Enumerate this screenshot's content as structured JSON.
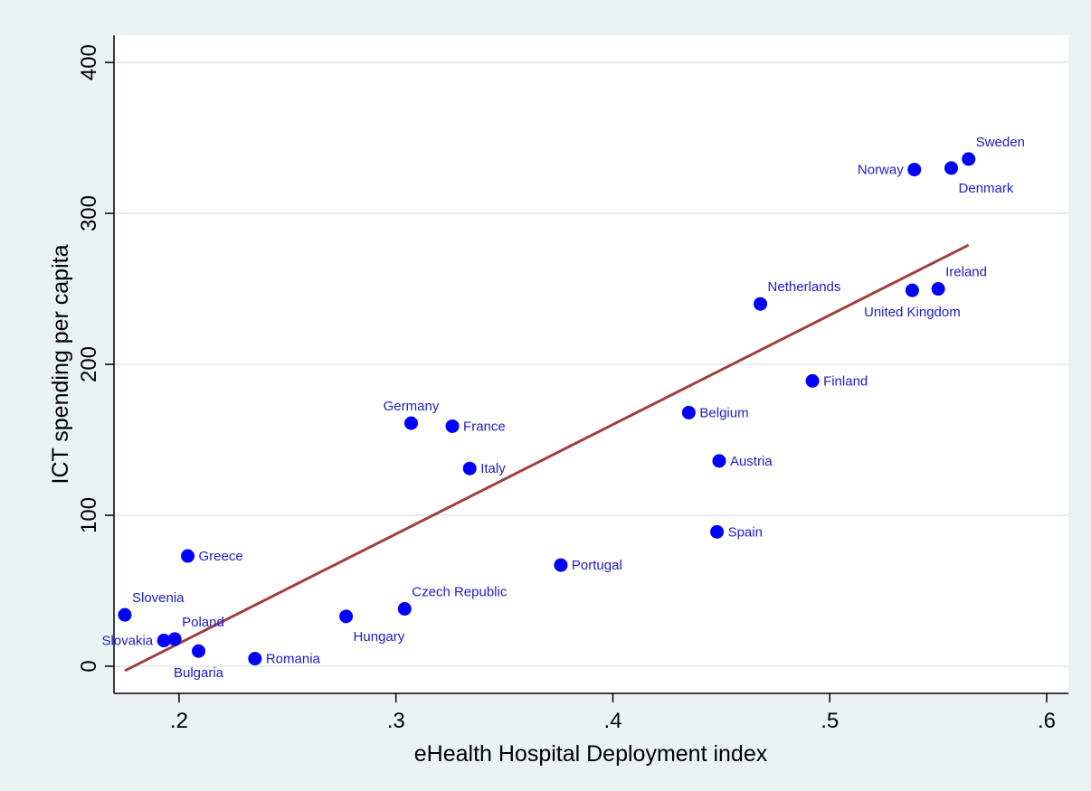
{
  "colors": {
    "outer_background": "#eaf2f3",
    "plot_background": "#ffffff",
    "grid": "#dce9ea",
    "point": "#0000ff",
    "label": "#1c1cc8",
    "fit_line": "#a04040"
  },
  "chart_data": {
    "type": "scatter",
    "title": "",
    "xlabel": "eHealth Hospital Deployment index",
    "ylabel": "ICT spending per capita",
    "xlim": [
      0.17,
      0.61
    ],
    "ylim": [
      -18,
      418
    ],
    "x_ticks": [
      0.2,
      0.3,
      0.4,
      0.5,
      0.6
    ],
    "x_tick_labels": [
      ".2",
      ".3",
      ".4",
      ".5",
      ".6"
    ],
    "y_ticks": [
      0,
      100,
      200,
      300,
      400
    ],
    "y_tick_labels": [
      "0",
      "100",
      "200",
      "300",
      "400"
    ],
    "grid": true,
    "legend": "none",
    "points": [
      {
        "label": "Sweden",
        "x": 0.564,
        "y": 336,
        "pos": "ne"
      },
      {
        "label": "Norway",
        "x": 0.539,
        "y": 329,
        "pos": "w"
      },
      {
        "label": "Denmark",
        "x": 0.556,
        "y": 330,
        "pos": "se"
      },
      {
        "label": "Ireland",
        "x": 0.55,
        "y": 250,
        "pos": "ne"
      },
      {
        "label": "United Kingdom",
        "x": 0.538,
        "y": 249,
        "pos": "s"
      },
      {
        "label": "Netherlands",
        "x": 0.468,
        "y": 240,
        "pos": "ne"
      },
      {
        "label": "Finland",
        "x": 0.492,
        "y": 189,
        "pos": "e"
      },
      {
        "label": "Belgium",
        "x": 0.435,
        "y": 168,
        "pos": "e"
      },
      {
        "label": "Austria",
        "x": 0.449,
        "y": 136,
        "pos": "e"
      },
      {
        "label": "Spain",
        "x": 0.448,
        "y": 89,
        "pos": "e"
      },
      {
        "label": "Germany",
        "x": 0.307,
        "y": 161,
        "pos": "n"
      },
      {
        "label": "France",
        "x": 0.326,
        "y": 159,
        "pos": "e"
      },
      {
        "label": "Italy",
        "x": 0.334,
        "y": 131,
        "pos": "e"
      },
      {
        "label": "Portugal",
        "x": 0.376,
        "y": 67,
        "pos": "e"
      },
      {
        "label": "Czech Republic",
        "x": 0.304,
        "y": 38,
        "pos": "ne"
      },
      {
        "label": "Hungary",
        "x": 0.277,
        "y": 33,
        "pos": "se"
      },
      {
        "label": "Greece",
        "x": 0.204,
        "y": 73,
        "pos": "e"
      },
      {
        "label": "Slovenia",
        "x": 0.175,
        "y": 34,
        "pos": "ne"
      },
      {
        "label": "Poland",
        "x": 0.198,
        "y": 18,
        "pos": "ne"
      },
      {
        "label": "Slovakia",
        "x": 0.193,
        "y": 17,
        "pos": "w"
      },
      {
        "label": "Bulgaria",
        "x": 0.209,
        "y": 10,
        "pos": "s"
      },
      {
        "label": "Romania",
        "x": 0.235,
        "y": 5,
        "pos": "e"
      }
    ],
    "fit_line": {
      "x": [
        0.175,
        0.564
      ],
      "y": [
        -3,
        279
      ]
    }
  }
}
